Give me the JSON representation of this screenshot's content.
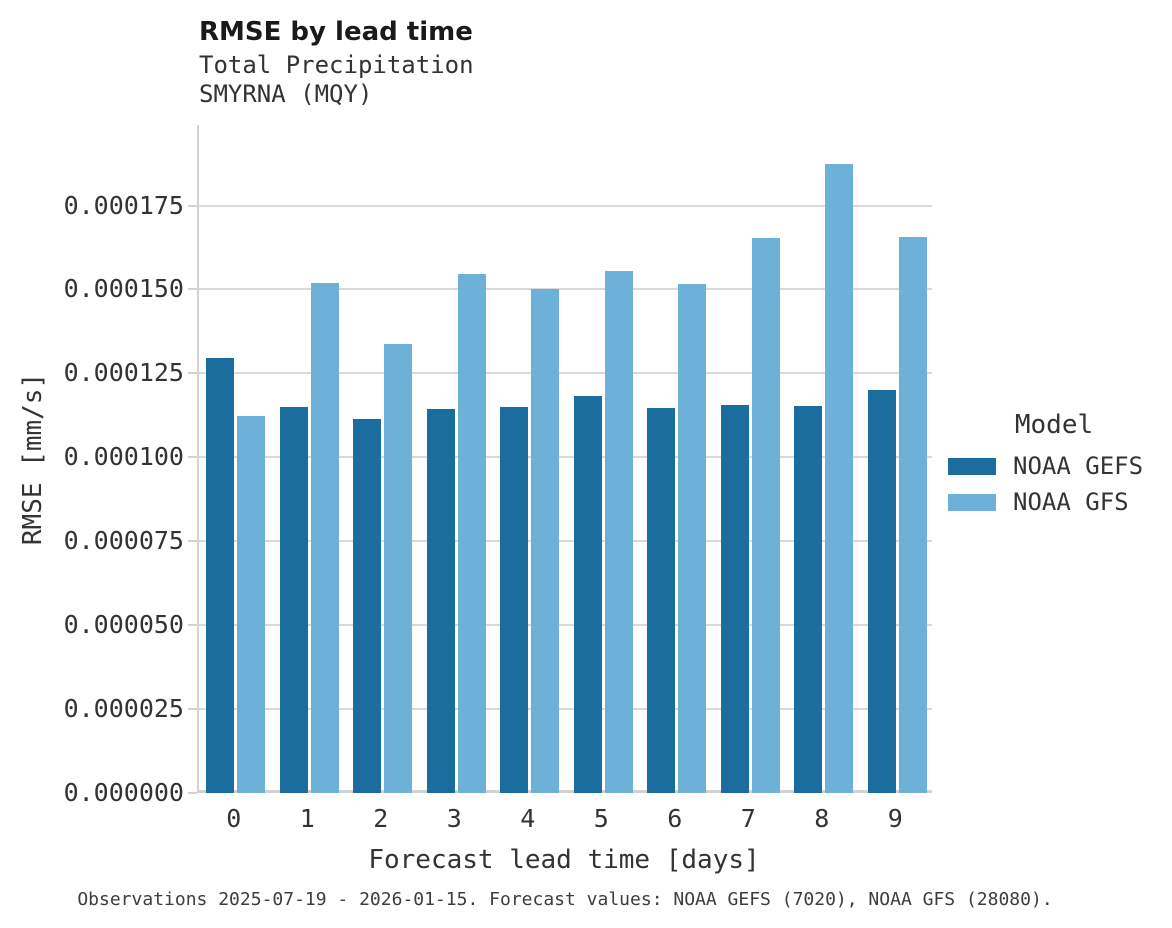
{
  "chart_data": {
    "type": "bar",
    "title": "RMSE by lead time",
    "subtitle_lines": [
      "Total Precipitation",
      "SMYRNA (MQY)"
    ],
    "xlabel": "Forecast lead time [days]",
    "ylabel": "RMSE [mm/s]",
    "categories": [
      "0",
      "1",
      "2",
      "3",
      "4",
      "5",
      "6",
      "7",
      "8",
      "9"
    ],
    "series": [
      {
        "name": "NOAA GEFS",
        "color": "#1a6d9d",
        "values": [
          0.0001295,
          0.000115,
          0.0001113,
          0.0001145,
          0.0001149,
          0.0001184,
          0.0001147,
          0.0001157,
          0.0001154,
          0.0001201
        ]
      },
      {
        "name": "NOAA GFS",
        "color": "#6db1d8",
        "values": [
          0.0001124,
          0.0001519,
          0.0001339,
          0.0001546,
          0.0001502,
          0.0001556,
          0.0001516,
          0.0001652,
          0.0001875,
          0.0001657
        ]
      }
    ],
    "ylim": [
      0,
      0.000199
    ],
    "yticks": [
      0,
      2.5e-05,
      5e-05,
      7.5e-05,
      0.0001,
      0.000125,
      0.00015,
      0.000175
    ],
    "ytick_labels": [
      "0.000000",
      "0.000025",
      "0.000050",
      "0.000075",
      "0.000100",
      "0.000125",
      "0.000150",
      "0.000175"
    ],
    "legend_title": "Model",
    "legend_position": "right",
    "grid": "horizontal",
    "caption": "Observations 2025-07-19 - 2026-01-15. Forecast values: NOAA GEFS (7020), NOAA GFS (28080)."
  },
  "colors": {
    "gridline": "#d9d9d9",
    "spine": "#d2d2d2",
    "title_text": "#1a1a1a",
    "axis_text": "#333333",
    "caption_text": "#3d3d3d",
    "background": "#ffffff"
  }
}
